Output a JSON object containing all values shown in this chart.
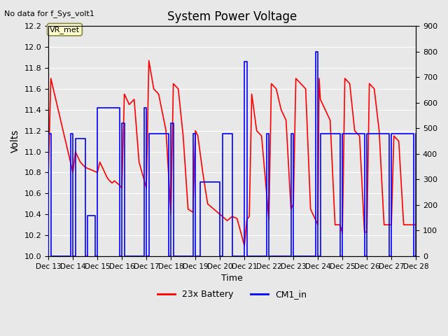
{
  "title": "System Power Voltage",
  "no_data_label": "No data for f_Sys_volt1",
  "ylabel": "Volts",
  "xlabel": "Time",
  "ylabel_right": "",
  "ylim_left": [
    10.0,
    12.2
  ],
  "ylim_right": [
    0,
    900
  ],
  "yticks_left": [
    10.0,
    10.2,
    10.4,
    10.6,
    10.8,
    11.0,
    11.2,
    11.4,
    11.6,
    11.8,
    12.0,
    12.2
  ],
  "yticks_right": [
    0,
    100,
    200,
    300,
    400,
    500,
    600,
    700,
    800,
    900
  ],
  "xtick_labels": [
    "Dec 13",
    "Dec 14",
    "Dec 15",
    "Dec 16",
    "Dec 17",
    "Dec 18",
    "Dec 19",
    "Dec 20",
    "Dec 21",
    "Dec 22",
    "Dec 23",
    "Dec 24",
    "Dec 25",
    "Dec 26",
    "Dec 27",
    "Dec 28"
  ],
  "background_color": "#e8e8e8",
  "plot_bg_color": "#e8e8e8",
  "grid_color": "#ffffff",
  "legend_label_red": "23x Battery",
  "legend_label_blue": "CM1_in",
  "vr_met_box_color": "#ffffcc",
  "vr_met_border_color": "#888844",
  "red_color": "#ff0000",
  "blue_color": "#0000ff",
  "red_x": [
    13,
    13.1,
    13.3,
    13.5,
    13.7,
    14.0,
    14.1,
    14.3,
    14.5,
    14.8,
    15.0,
    15.1,
    15.2,
    15.3,
    15.4,
    15.5,
    15.6,
    15.7,
    15.8,
    15.9,
    16.0,
    16.1,
    16.3,
    16.5,
    16.7,
    17.0,
    17.1,
    17.3,
    17.5,
    17.8,
    18.0,
    18.1,
    18.3,
    18.5,
    18.7,
    18.9,
    19.0,
    19.1,
    19.3,
    19.5,
    20.0,
    20.1,
    20.2,
    20.3,
    20.5,
    20.7,
    21.0,
    21.1,
    21.2,
    21.3,
    21.5,
    21.7,
    22.0,
    22.1,
    22.3,
    22.5,
    22.7,
    22.9,
    23.0,
    23.1,
    23.3,
    23.5,
    23.7,
    24.0,
    24.05,
    24.1,
    24.3,
    24.5,
    24.7,
    24.9,
    25.0,
    25.1,
    25.3,
    25.5,
    25.7,
    25.9,
    26.0,
    26.1,
    26.3,
    26.5,
    26.7,
    27.0,
    27.1,
    27.3,
    27.5,
    27.7,
    27.9,
    28.0
  ],
  "red_y": [
    10.8,
    11.7,
    11.5,
    11.3,
    11.1,
    10.8,
    11.0,
    10.9,
    10.85,
    10.82,
    10.8,
    10.9,
    10.85,
    10.8,
    10.75,
    10.72,
    10.7,
    10.72,
    10.7,
    10.68,
    10.65,
    11.55,
    11.45,
    11.5,
    10.9,
    10.65,
    11.87,
    11.6,
    11.55,
    11.2,
    10.4,
    11.65,
    11.6,
    11.15,
    10.45,
    10.42,
    11.2,
    11.15,
    10.8,
    10.5,
    10.4,
    10.38,
    10.36,
    10.34,
    10.38,
    10.36,
    10.1,
    10.35,
    10.38,
    11.55,
    11.2,
    11.15,
    10.35,
    11.65,
    11.6,
    11.4,
    11.3,
    10.45,
    10.5,
    11.7,
    11.65,
    11.6,
    10.45,
    10.3,
    11.7,
    11.5,
    11.4,
    11.3,
    10.3,
    10.3,
    10.22,
    11.7,
    11.65,
    11.2,
    11.15,
    10.23,
    10.23,
    11.65,
    11.6,
    11.2,
    10.3,
    10.3,
    11.15,
    11.1,
    10.3,
    10.3,
    10.3,
    10.3
  ],
  "blue_x": [
    13.0,
    13.0,
    13.1,
    13.1,
    13.9,
    13.9,
    14.0,
    14.0,
    14.1,
    14.1,
    14.5,
    14.5,
    14.6,
    14.6,
    14.9,
    14.9,
    15.0,
    15.0,
    15.9,
    15.9,
    16.0,
    16.0,
    16.1,
    16.1,
    16.9,
    16.9,
    17.0,
    17.0,
    17.1,
    17.1,
    17.9,
    17.9,
    18.0,
    18.0,
    18.1,
    18.1,
    18.9,
    18.9,
    19.0,
    19.0,
    19.2,
    19.2,
    20.0,
    20.0,
    20.1,
    20.1,
    20.5,
    20.5,
    21.0,
    21.0,
    21.1,
    21.1,
    21.9,
    21.9,
    22.0,
    22.0,
    22.9,
    22.9,
    23.0,
    23.0,
    23.9,
    23.9,
    24.0,
    24.0,
    24.1,
    24.1,
    24.9,
    24.9,
    25.0,
    25.0,
    25.9,
    25.9,
    26.0,
    26.0,
    26.9,
    26.9,
    27.0,
    27.0,
    27.9,
    27.9,
    28.0,
    28.0
  ],
  "blue_y": [
    0,
    480,
    480,
    0,
    0,
    480,
    480,
    0,
    0,
    460,
    460,
    0,
    0,
    160,
    160,
    0,
    0,
    580,
    580,
    0,
    0,
    520,
    520,
    0,
    0,
    580,
    580,
    0,
    0,
    480,
    480,
    0,
    0,
    520,
    520,
    0,
    0,
    480,
    480,
    0,
    0,
    290,
    290,
    0,
    0,
    480,
    480,
    0,
    0,
    760,
    760,
    0,
    0,
    480,
    480,
    0,
    0,
    480,
    480,
    0,
    0,
    800,
    800,
    0,
    0,
    480,
    480,
    0,
    0,
    480,
    480,
    0,
    0,
    480,
    480,
    0,
    0,
    480,
    480,
    0,
    0,
    480
  ]
}
